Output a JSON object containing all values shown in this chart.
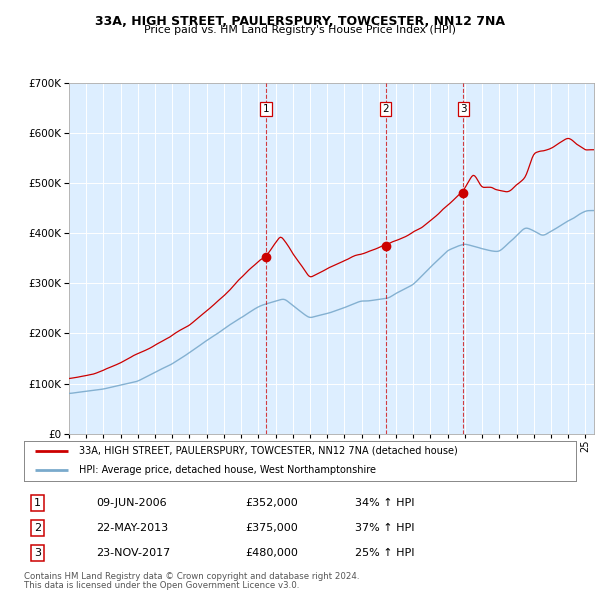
{
  "title1": "33A, HIGH STREET, PAULERSPURY, TOWCESTER, NN12 7NA",
  "title2": "Price paid vs. HM Land Registry's House Price Index (HPI)",
  "legend_line1": "33A, HIGH STREET, PAULERSPURY, TOWCESTER, NN12 7NA (detached house)",
  "legend_line2": "HPI: Average price, detached house, West Northamptonshire",
  "footer1": "Contains HM Land Registry data © Crown copyright and database right 2024.",
  "footer2": "This data is licensed under the Open Government Licence v3.0.",
  "transactions": [
    {
      "num": 1,
      "date": "09-JUN-2006",
      "price": "£352,000",
      "hpi": "34% ↑ HPI",
      "year": 2006.44
    },
    {
      "num": 2,
      "date": "22-MAY-2013",
      "price": "£375,000",
      "hpi": "37% ↑ HPI",
      "year": 2013.39
    },
    {
      "num": 3,
      "date": "23-NOV-2017",
      "price": "£480,000",
      "hpi": "25% ↑ HPI",
      "year": 2017.9
    }
  ],
  "sale_prices": [
    352000,
    375000,
    480000
  ],
  "red_color": "#cc0000",
  "blue_color": "#7aaacc",
  "bg_color": "#ddeeff",
  "grid_color": "#c0d4e8",
  "ylim": [
    0,
    700000
  ],
  "xlim_start": 1995.0,
  "xlim_end": 2025.5
}
